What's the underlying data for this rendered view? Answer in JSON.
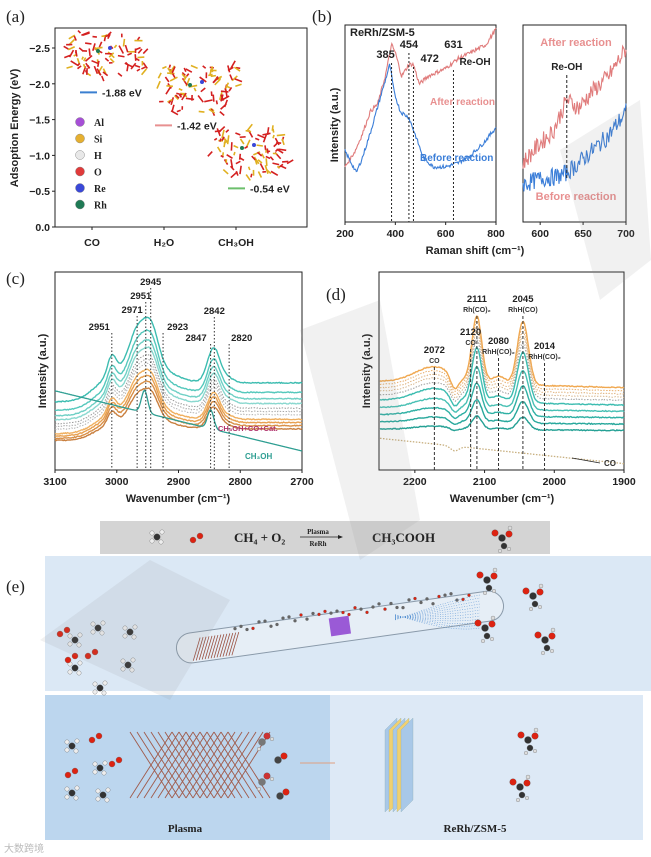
{
  "panel_labels": {
    "a": "(a)",
    "b": "(b)",
    "c": "(c)",
    "d": "(d)",
    "e": "(e)"
  },
  "watermark": "大数跨境",
  "chart_data": [
    {
      "id": "a",
      "type": "bar",
      "title": "",
      "xlabel": "",
      "ylabel": "Adsoption Energy (eV)",
      "ylim": [
        0.0,
        -2.7
      ],
      "yticks": [
        "0.0",
        "−0.5",
        "−1.0",
        "−1.5",
        "−2.0",
        "−2.5"
      ],
      "ytick_values": [
        0,
        -0.5,
        -1.0,
        -1.5,
        -2.0,
        -2.5
      ],
      "categories": [
        "CO",
        "H₂O",
        "CH₃OH"
      ],
      "values": [
        -1.88,
        -1.42,
        -0.54
      ],
      "value_labels": [
        "-1.88 eV",
        "-1.42 eV",
        "-0.54 eV"
      ],
      "colors": [
        "#3a7fd0",
        "#e89090",
        "#6cbf6c"
      ],
      "legend": [
        {
          "label": "Al",
          "color": "#a64fd6"
        },
        {
          "label": "Si",
          "color": "#e6b030"
        },
        {
          "label": "H",
          "color": "#e8e8e8"
        },
        {
          "label": "O",
          "color": "#e03a3a"
        },
        {
          "label": "Re",
          "color": "#3a48d8"
        },
        {
          "label": "Rh",
          "color": "#1f7a55"
        }
      ]
    },
    {
      "id": "b",
      "type": "line",
      "xlabel": "Raman shift  (cm⁻¹)",
      "ylabel": "Intensity (a.u.)",
      "xlim": [
        200,
        800
      ],
      "xticks": [
        "200",
        "400",
        "600",
        "800"
      ],
      "xtick_values": [
        200,
        400,
        600,
        800
      ],
      "ylim": [
        0,
        1
      ],
      "title": "ReRh/ZSM-5",
      "series": [
        {
          "name": "After reaction",
          "color": "#e07c7c",
          "points": [
            [
              200,
              0.28
            ],
            [
              240,
              0.36
            ],
            [
              270,
              0.45
            ],
            [
              300,
              0.56
            ],
            [
              330,
              0.6
            ],
            [
              360,
              0.74
            ],
            [
              385,
              0.9
            ],
            [
              400,
              0.86
            ],
            [
              425,
              0.74
            ],
            [
              454,
              0.8
            ],
            [
              472,
              0.8
            ],
            [
              495,
              0.7
            ],
            [
              530,
              0.74
            ],
            [
              600,
              0.78
            ],
            [
              650,
              0.83
            ],
            [
              700,
              0.86
            ],
            [
              760,
              0.9
            ],
            [
              800,
              0.98
            ]
          ]
        },
        {
          "name": "Before reaction",
          "color": "#3b7ed8",
          "points": [
            [
              200,
              0.36
            ],
            [
              225,
              0.3
            ],
            [
              245,
              0.25
            ],
            [
              270,
              0.33
            ],
            [
              300,
              0.45
            ],
            [
              340,
              0.63
            ],
            [
              365,
              0.74
            ],
            [
              378,
              0.8
            ],
            [
              395,
              0.66
            ],
            [
              420,
              0.56
            ],
            [
              454,
              0.53
            ],
            [
              480,
              0.44
            ],
            [
              510,
              0.33
            ],
            [
              550,
              0.28
            ],
            [
              600,
              0.28
            ],
            [
              650,
              0.3
            ],
            [
              700,
              0.34
            ],
            [
              750,
              0.4
            ],
            [
              800,
              0.48
            ]
          ]
        }
      ],
      "annotations": [
        {
          "label": "385",
          "x": 385
        },
        {
          "label": "454",
          "x": 454
        },
        {
          "label": "472",
          "x": 472
        },
        {
          "label": "631",
          "x": 631,
          "sub": "Re-OH"
        }
      ]
    },
    {
      "id": "b-inset",
      "type": "line",
      "xlim": [
        580,
        700
      ],
      "xticks": [
        "600",
        "650",
        "700"
      ],
      "xtick_values": [
        600,
        650,
        700
      ],
      "ylim": [
        0,
        1
      ],
      "series": [
        {
          "name": "After reaction",
          "color": "#e07c7c",
          "points": [
            [
              580,
              0.3
            ],
            [
              600,
              0.4
            ],
            [
              615,
              0.46
            ],
            [
              631,
              0.62
            ],
            [
              645,
              0.58
            ],
            [
              660,
              0.66
            ],
            [
              680,
              0.74
            ],
            [
              700,
              0.88
            ]
          ]
        },
        {
          "name": "Before reaction",
          "color": "#3b7ed8",
          "points": [
            [
              580,
              0.19
            ],
            [
              600,
              0.22
            ],
            [
              620,
              0.23
            ],
            [
              631,
              0.25
            ],
            [
              645,
              0.3
            ],
            [
              660,
              0.36
            ],
            [
              680,
              0.44
            ],
            [
              700,
              0.56
            ]
          ]
        }
      ],
      "labels": {
        "top": "After reaction",
        "bottom": "Before reaction",
        "peak": "Re-OH"
      },
      "annotations": [
        {
          "label": "Re-OH",
          "x": 631
        }
      ]
    },
    {
      "id": "c",
      "type": "line",
      "xlabel": "Wavenumber (cm⁻¹)",
      "ylabel": "Intensity (a.u.)",
      "xlim": [
        3100,
        2700
      ],
      "xticks": [
        "3100",
        "3000",
        "2900",
        "2800",
        "2700"
      ],
      "xtick_values": [
        3100,
        3000,
        2900,
        2800,
        2700
      ],
      "ylim": [
        0,
        1.25
      ],
      "profile_peaks": [
        [
          3008,
          0.12,
          7
        ],
        [
          2968,
          0.18,
          12
        ],
        [
          2945,
          0.24,
          12
        ],
        [
          2960,
          0.14,
          38
        ],
        [
          2843,
          0.22,
          10
        ],
        [
          2820,
          0.03,
          10
        ]
      ],
      "series": [
        {
          "name": "t1",
          "color": "#3cbcb0",
          "offset": 0.55,
          "scale": 1.0,
          "dash": false
        },
        {
          "name": "t2",
          "color": "#55c8bc",
          "offset": 0.49,
          "scale": 0.95,
          "dash": false
        },
        {
          "name": "t3",
          "color": "#6fd0c5",
          "offset": 0.45,
          "scale": 0.9,
          "dash": false
        },
        {
          "name": "t4",
          "color": "#8ad8cf",
          "offset": 0.42,
          "scale": 0.86,
          "dash": false
        },
        {
          "name": "g1",
          "color": "#9a9a9a",
          "offset": 0.39,
          "scale": 0.82,
          "dash": true
        },
        {
          "name": "g2",
          "color": "#a8a8a8",
          "offset": 0.37,
          "scale": 0.8,
          "dash": true
        },
        {
          "name": "g3",
          "color": "#b4b4b4",
          "offset": 0.35,
          "scale": 0.78,
          "dash": true
        },
        {
          "name": "o1",
          "color": "#f0b060",
          "offset": 0.32,
          "scale": 0.76,
          "dash": false
        },
        {
          "name": "o2",
          "color": "#e8a050",
          "offset": 0.3,
          "scale": 0.72,
          "dash": false
        },
        {
          "name": "o3",
          "color": "#d99048",
          "offset": 0.28,
          "scale": 0.68,
          "dash": false
        },
        {
          "name": "o4",
          "color": "#c98040",
          "offset": 0.26,
          "scale": 0.62,
          "dash": false
        }
      ],
      "reference": {
        "name": "CH₃OH",
        "color": "#2e9e92",
        "baseline": [
          0.5,
          0.12
        ],
        "peaks": [
          [
            2955,
            0.14,
            5
          ],
          [
            2848,
            0.12,
            5
          ]
        ]
      },
      "series_labels": {
        "mix": "CH₃OH+CO+Cat.",
        "ref": "CH₃OH",
        "mix_color": "#b0306a"
      },
      "annotations": [
        {
          "label": "2951",
          "x": 3008
        },
        {
          "label": "2971",
          "x": 2967
        },
        {
          "label": "2951",
          "x": 2953
        },
        {
          "label": "2945",
          "x": 2945
        },
        {
          "label": "2923",
          "x": 2925
        },
        {
          "label": "2847",
          "x": 2848
        },
        {
          "label": "2842",
          "x": 2842
        },
        {
          "label": "2820",
          "x": 2818
        }
      ]
    },
    {
      "id": "d",
      "type": "line",
      "xlabel": "Wavenumber (cm⁻¹)",
      "ylabel": "Intensity (a.u.)",
      "xlim": [
        2250,
        1900
      ],
      "xticks": [
        "2200",
        "2100",
        "2000",
        "1900"
      ],
      "xtick_values": [
        2200,
        2100,
        2000,
        1900
      ],
      "ylim": [
        0,
        1.25
      ],
      "profile_peaks": [
        [
          2172,
          0.1,
          28
        ],
        [
          2143,
          -0.09,
          6
        ],
        [
          2111,
          0.42,
          7
        ],
        [
          2080,
          0.05,
          10
        ],
        [
          2045,
          0.4,
          8
        ]
      ],
      "series": [
        {
          "name": "o1",
          "color": "#f0a850",
          "offset": 0.52,
          "scale": 1.0,
          "dash": false
        },
        {
          "name": "o2",
          "color": "#e8b070",
          "offset": 0.5,
          "scale": 0.97,
          "dash": true
        },
        {
          "name": "o3",
          "color": "#e0b480",
          "offset": 0.48,
          "scale": 0.94,
          "dash": true
        },
        {
          "name": "o4",
          "color": "#d8b890",
          "offset": 0.46,
          "scale": 0.92,
          "dash": true
        },
        {
          "name": "g1",
          "color": "#a0a0a0",
          "offset": 0.44,
          "scale": 0.85,
          "dash": true
        },
        {
          "name": "t1",
          "color": "#3cbcb0",
          "offset": 0.41,
          "scale": 0.8,
          "dash": false
        },
        {
          "name": "t2",
          "color": "#48c0b4",
          "offset": 0.37,
          "scale": 0.62,
          "dash": false
        },
        {
          "name": "t3",
          "color": "#2fb0a4",
          "offset": 0.33,
          "scale": 0.48,
          "dash": false
        },
        {
          "name": "t4",
          "color": "#28a89c",
          "offset": 0.29,
          "scale": 0.34,
          "dash": false
        },
        {
          "name": "t5",
          "color": "#24a094",
          "offset": 0.25,
          "scale": 0.2,
          "dash": false
        }
      ],
      "reference": {
        "name": "CO",
        "color": "#c8b080",
        "baseline": [
          0.2,
          0.04
        ],
        "peaks": [
          [
            2143,
            -0.03,
            6
          ]
        ]
      },
      "series_labels": {
        "ref": "CO"
      },
      "annotations": [
        {
          "label": "2072",
          "sub": "CO",
          "x": 2172
        },
        {
          "label": "2120",
          "sub": "CO",
          "x": 2120
        },
        {
          "label": "2111",
          "sub": "Rh(CO)₂",
          "x": 2111
        },
        {
          "label": "2080",
          "sub": "RhH(CO)₂",
          "x": 2080
        },
        {
          "label": "2045",
          "sub": "RhH(CO)",
          "x": 2045
        },
        {
          "label": "2014",
          "sub": "RhH(CO)₂",
          "x": 2014
        }
      ]
    }
  ],
  "scheme": {
    "equation_left": "CH₄ + O₂",
    "arrow_top": "Plasma",
    "arrow_bottom": "ReRh",
    "equation_right": "CH₃COOH",
    "plasma_label": "Plasma",
    "catalyst_label": "ReRh/ZSM-5"
  }
}
